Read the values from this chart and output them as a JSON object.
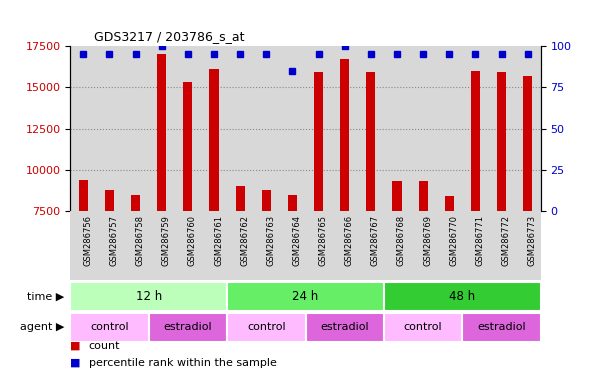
{
  "title": "GDS3217 / 203786_s_at",
  "samples": [
    "GSM286756",
    "GSM286757",
    "GSM286758",
    "GSM286759",
    "GSM286760",
    "GSM286761",
    "GSM286762",
    "GSM286763",
    "GSM286764",
    "GSM286765",
    "GSM286766",
    "GSM286767",
    "GSM286768",
    "GSM286769",
    "GSM286770",
    "GSM286771",
    "GSM286772",
    "GSM286773"
  ],
  "counts": [
    9400,
    8800,
    8500,
    17000,
    15300,
    16100,
    9000,
    8800,
    8500,
    15900,
    16700,
    15900,
    9300,
    9300,
    8400,
    16000,
    15900,
    15700
  ],
  "percentile_ranks": [
    95,
    95,
    95,
    100,
    95,
    95,
    95,
    95,
    85,
    95,
    100,
    95,
    95,
    95,
    95,
    95,
    95,
    95
  ],
  "bar_color": "#cc0000",
  "dot_color": "#0000cc",
  "ylim_left": [
    7500,
    17500
  ],
  "ylim_right": [
    0,
    100
  ],
  "yticks_left": [
    7500,
    10000,
    12500,
    15000,
    17500
  ],
  "yticks_right": [
    0,
    25,
    50,
    75,
    100
  ],
  "time_groups": [
    {
      "label": "12 h",
      "start": 0,
      "end": 6,
      "color": "#bbffbb"
    },
    {
      "label": "24 h",
      "start": 6,
      "end": 12,
      "color": "#66ee66"
    },
    {
      "label": "48 h",
      "start": 12,
      "end": 18,
      "color": "#33cc33"
    }
  ],
  "agent_groups": [
    {
      "label": "control",
      "start": 0,
      "end": 3,
      "color": "#ffbbff"
    },
    {
      "label": "estradiol",
      "start": 3,
      "end": 6,
      "color": "#dd66dd"
    },
    {
      "label": "control",
      "start": 6,
      "end": 9,
      "color": "#ffbbff"
    },
    {
      "label": "estradiol",
      "start": 9,
      "end": 12,
      "color": "#dd66dd"
    },
    {
      "label": "control",
      "start": 12,
      "end": 15,
      "color": "#ffbbff"
    },
    {
      "label": "estradiol",
      "start": 15,
      "end": 18,
      "color": "#dd66dd"
    }
  ],
  "legend_count_label": "count",
  "legend_pct_label": "percentile rank within the sample",
  "time_label": "time",
  "agent_label": "agent",
  "tick_label_color_left": "#cc0000",
  "tick_label_color_right": "#0000cc",
  "background_color": "#ffffff",
  "grid_color": "#888888",
  "sample_bg_color": "#d8d8d8"
}
